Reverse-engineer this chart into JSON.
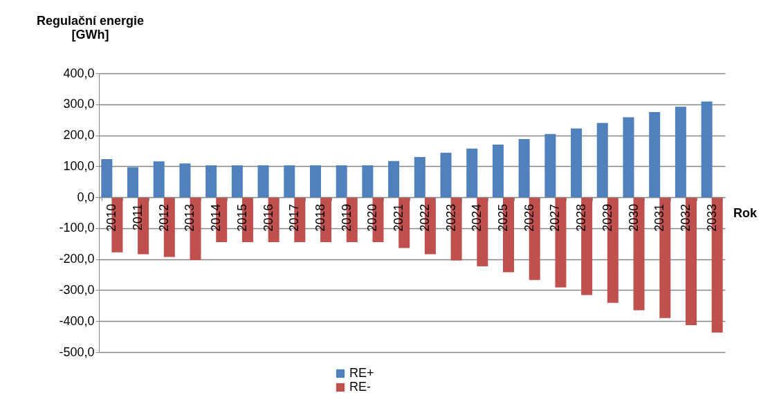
{
  "chart_data": {
    "type": "bar",
    "ylabel": "Regulační energie\n[GWh]",
    "xlabel": "Rok",
    "categories": [
      "2010",
      "2011",
      "2012",
      "2013",
      "2014",
      "2015",
      "2016",
      "2017",
      "2018",
      "2019",
      "2020",
      "2021",
      "2022",
      "2023",
      "2024",
      "2025",
      "2026",
      "2027",
      "2028",
      "2029",
      "2030",
      "2031",
      "2032",
      "2033"
    ],
    "series": [
      {
        "name": "RE+",
        "color": "#4f81bd",
        "values": [
          123,
          97,
          116,
          109,
          103,
          103,
          103,
          103,
          103,
          103,
          103,
          117,
          130,
          144,
          157,
          170,
          188,
          204,
          222,
          240,
          258,
          275,
          292,
          309
        ]
      },
      {
        "name": "RE-",
        "color": "#c0504d",
        "values": [
          -178,
          -184,
          -193,
          -203,
          -145,
          -145,
          -145,
          -145,
          -145,
          -145,
          -145,
          -164,
          -184,
          -204,
          -223,
          -242,
          -267,
          -291,
          -316,
          -341,
          -365,
          -390,
          -413,
          -437
        ]
      }
    ],
    "ylim": [
      -500,
      400
    ],
    "yticks": [
      {
        "value": -500,
        "label": "-500,0"
      },
      {
        "value": -400,
        "label": "-400,0"
      },
      {
        "value": -300,
        "label": "-300,0"
      },
      {
        "value": -200,
        "label": "-200,0"
      },
      {
        "value": -100,
        "label": "-100,0"
      },
      {
        "value": 0,
        "label": "0,0"
      },
      {
        "value": 100,
        "label": "100,0"
      },
      {
        "value": 200,
        "label": "200,0"
      },
      {
        "value": 300,
        "label": "300,0"
      },
      {
        "value": 400,
        "label": "400,0"
      }
    ],
    "grid": "y",
    "legend": "bottom"
  }
}
